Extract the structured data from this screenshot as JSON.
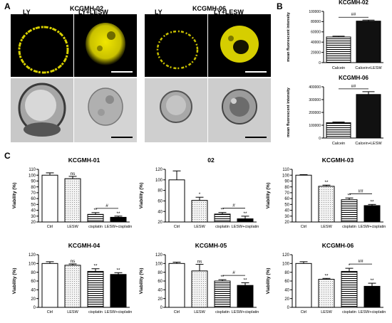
{
  "panels": {
    "a": "A",
    "b": "B",
    "c": "C"
  },
  "microscopy": {
    "groups": [
      {
        "title": "KCGMH-02",
        "labels": [
          "LY",
          "LY+LESW"
        ]
      },
      {
        "title": "KCGMH-06",
        "labels": [
          "LY",
          "LY+LESW"
        ]
      }
    ],
    "colors": {
      "fluorescence": "#e8e000",
      "background": "#000000",
      "brightfield": "#d9d9d9"
    }
  },
  "chart_data": [
    {
      "id": "b1",
      "type": "bar",
      "title": "KCGMH-02",
      "categories": [
        "Calcein",
        "Calcein+LESW"
      ],
      "values": [
        50000,
        81000
      ],
      "errors": [
        1500,
        2000
      ],
      "ylabel": "mean fluorescent intensity",
      "ylim": [
        0,
        100000
      ],
      "yticks": [
        0,
        20000,
        40000,
        60000,
        80000,
        100000
      ],
      "patterns": [
        "hstripe",
        "dark"
      ],
      "annotations": [
        {
          "text": "##",
          "between": [
            0,
            1
          ]
        }
      ]
    },
    {
      "id": "b2",
      "type": "bar",
      "title": "KCGMH-06",
      "categories": [
        "Calcein",
        "Calcein+LESW"
      ],
      "values": [
        120000,
        340000
      ],
      "errors": [
        5000,
        22000
      ],
      "ylabel": "mean fluorescent intensity",
      "ylim": [
        0,
        400000
      ],
      "yticks": [
        0,
        100000,
        200000,
        300000,
        400000
      ],
      "patterns": [
        "hstripe",
        "dark"
      ],
      "annotations": [
        {
          "text": "##",
          "between": [
            0,
            1
          ]
        }
      ]
    },
    {
      "id": "c1",
      "type": "bar",
      "title": "KCGMH-01",
      "categories": [
        "Ctrl",
        "LESW",
        "cisplatin",
        "LESW+cisplatin"
      ],
      "values": [
        100,
        94,
        33,
        28
      ],
      "errors": [
        4,
        4,
        3,
        2
      ],
      "marks": [
        "",
        "ns",
        "**",
        "**"
      ],
      "ylabel": "Viability (%)",
      "ylim": [
        20,
        110
      ],
      "yticks": [
        20,
        30,
        40,
        50,
        60,
        70,
        80,
        90,
        100,
        110
      ],
      "patterns": [
        "white",
        "dots",
        "hstripe",
        "black"
      ],
      "annotations": [
        {
          "text": "#",
          "between": [
            2,
            3
          ]
        }
      ]
    },
    {
      "id": "c2",
      "type": "bar",
      "title": "02",
      "categories": [
        "Ctrl",
        "LESW",
        "cisplatin",
        "LESW+cisplatin"
      ],
      "values": [
        100,
        61,
        35,
        26
      ],
      "errors": [
        17,
        6,
        3,
        5
      ],
      "marks": [
        "",
        "*",
        "**",
        "**"
      ],
      "ylabel": "Viability (%)",
      "ylim": [
        20,
        120
      ],
      "yticks": [
        20,
        40,
        60,
        80,
        100,
        120
      ],
      "patterns": [
        "white",
        "dots",
        "hstripe",
        "black"
      ],
      "annotations": [
        {
          "text": "#",
          "between": [
            2,
            3
          ]
        }
      ]
    },
    {
      "id": "c3",
      "type": "bar",
      "title": "KCGMH-03",
      "categories": [
        "Ctrl",
        "LESW",
        "cisplatin",
        "LESW+cisplatin"
      ],
      "values": [
        100,
        81,
        58,
        48
      ],
      "errors": [
        1,
        2,
        3,
        2
      ],
      "marks": [
        "",
        "**",
        "**",
        "**"
      ],
      "ylabel": "Viability (%)",
      "ylim": [
        20,
        110
      ],
      "yticks": [
        20,
        30,
        40,
        50,
        60,
        70,
        80,
        90,
        100,
        110
      ],
      "patterns": [
        "white",
        "dots",
        "hstripe",
        "black"
      ],
      "annotations": [
        {
          "text": "##",
          "between": [
            2,
            3
          ]
        }
      ]
    },
    {
      "id": "c4",
      "type": "bar",
      "title": "KCGMH-04",
      "categories": [
        "Ctrl",
        "LESW",
        "cisplatin",
        "LESW+cisplatin"
      ],
      "values": [
        100,
        96,
        82,
        75
      ],
      "errors": [
        4,
        3,
        6,
        4
      ],
      "marks": [
        "",
        "ns",
        "**",
        "**"
      ],
      "ylabel": "Viability (%)",
      "ylim": [
        0,
        120
      ],
      "yticks": [
        0,
        20,
        40,
        60,
        80,
        100,
        120
      ],
      "patterns": [
        "white",
        "dots",
        "hstripe",
        "black"
      ],
      "annotations": []
    },
    {
      "id": "c5",
      "type": "bar",
      "title": "KCGMH-05",
      "categories": [
        "Ctrl",
        "LESW",
        "cisplatin",
        "LESW+cisplatin"
      ],
      "values": [
        100,
        83,
        60,
        50
      ],
      "errors": [
        3,
        15,
        3,
        6
      ],
      "marks": [
        "",
        "ns",
        "**",
        "**"
      ],
      "ylabel": "Viability (%)",
      "ylim": [
        0,
        120
      ],
      "yticks": [
        0,
        20,
        40,
        60,
        80,
        100,
        120
      ],
      "patterns": [
        "white",
        "dots",
        "hstripe",
        "black"
      ],
      "annotations": [
        {
          "text": "#",
          "between": [
            2,
            3
          ]
        }
      ]
    },
    {
      "id": "c6",
      "type": "bar",
      "title": "KCGMH-06",
      "categories": [
        "Ctrl",
        "LESW",
        "cisplatin",
        "LESW+cisplatin"
      ],
      "values": [
        100,
        64,
        82,
        48
      ],
      "errors": [
        4,
        2,
        7,
        7
      ],
      "marks": [
        "",
        "**",
        "*",
        "**"
      ],
      "ylabel": "Viability (%)",
      "ylim": [
        0,
        120
      ],
      "yticks": [
        0,
        20,
        40,
        60,
        80,
        100,
        120
      ],
      "patterns": [
        "white",
        "dots",
        "hstripe",
        "black"
      ],
      "annotations": [
        {
          "text": "##",
          "between": [
            2,
            3
          ]
        }
      ]
    }
  ]
}
